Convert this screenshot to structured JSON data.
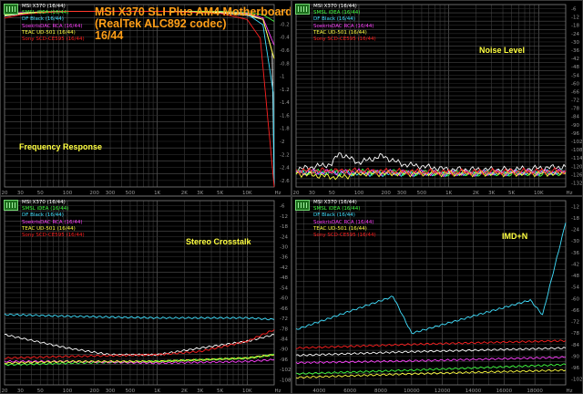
{
  "title": {
    "line1": "MSI X370 SLI Plus AM4 Motherboard",
    "line2": "(RealTek ALC892 codec)",
    "line3": "16/44"
  },
  "legend": [
    {
      "label": "MSI X370 (16/44)",
      "color": "#ffffff"
    },
    {
      "label": "SMSL iDEA (16/44)",
      "color": "#40ff40"
    },
    {
      "label": "DF Black (16/44)",
      "color": "#40e0ff"
    },
    {
      "label": "SoekrisDAC RCA (16/44)",
      "color": "#ff40ff"
    },
    {
      "label": "TEAC UD-501 (16/44)",
      "color": "#ffff40"
    },
    {
      "label": "Sony SCD-CE595 (16/44)",
      "color": "#ff2020"
    }
  ],
  "panels": [
    {
      "id": "freq",
      "label": "Frequency Response",
      "yticks": [
        "+0",
        "-0.2",
        "-0.4",
        "-0.6",
        "-0.8",
        "-1",
        "-1.2",
        "-1.4",
        "-1.6",
        "-1.8",
        "-2",
        "-2.2",
        "-2.4",
        "-2.6"
      ],
      "xticks": [
        "20",
        "30",
        "50",
        "100",
        "200",
        "300",
        "500",
        "1K",
        "2K",
        "3K",
        "5K",
        "10K",
        "Hz"
      ]
    },
    {
      "id": "noise",
      "label": "Noise Level",
      "yticks": [
        "-6",
        "-12",
        "-18",
        "-24",
        "-30",
        "-36",
        "-42",
        "-48",
        "-54",
        "-60",
        "-66",
        "-72",
        "-78",
        "-84",
        "-90",
        "-96",
        "-102",
        "-108",
        "-114",
        "-120",
        "-126",
        "-132"
      ],
      "xticks": [
        "20",
        "30",
        "50",
        "100",
        "200",
        "300",
        "500",
        "1K",
        "2K",
        "3K",
        "5K",
        "10K",
        "Hz"
      ]
    },
    {
      "id": "crosstalk",
      "label": "Stereo Crosstalk",
      "yticks": [
        "-6",
        "-12",
        "-18",
        "-24",
        "-30",
        "-36",
        "-42",
        "-48",
        "-54",
        "-60",
        "-66",
        "-72",
        "-78",
        "-84",
        "-90",
        "-96",
        "-102",
        "-108"
      ],
      "xticks": [
        "20",
        "30",
        "50",
        "100",
        "200",
        "300",
        "500",
        "1K",
        "2K",
        "3K",
        "5K",
        "10K",
        "Hz"
      ]
    },
    {
      "id": "imd",
      "label": "IMD+N",
      "yticks": [
        "-12",
        "-18",
        "-24",
        "-30",
        "-36",
        "-42",
        "-48",
        "-54",
        "-60",
        "-66",
        "-72",
        "-78",
        "-84",
        "-90",
        "-96",
        "-102"
      ],
      "xticks": [
        "4000",
        "6000",
        "8000",
        "10000",
        "12000",
        "14000",
        "16000",
        "18000",
        "Hz"
      ]
    }
  ],
  "chart_data": [
    {
      "type": "line",
      "title": "Frequency Response",
      "xscale": "log",
      "xlim": [
        20,
        20000
      ],
      "ylim": [
        -2.6,
        0.1
      ],
      "series": [
        {
          "name": "MSI X370 (16/44)",
          "x": [
            20,
            30,
            50,
            100,
            1000,
            5000,
            10000,
            15000,
            19000,
            20000
          ],
          "y": [
            -0.07,
            -0.04,
            -0.02,
            0,
            0,
            -0.02,
            -0.06,
            -0.12,
            -0.6,
            -2.6
          ]
        },
        {
          "name": "SMSL iDEA (16/44)",
          "x": [
            20,
            30,
            50,
            100,
            1000,
            5000,
            10000,
            15000,
            20000
          ],
          "y": [
            -0.03,
            -0.02,
            -0.01,
            0,
            0,
            0,
            -0.02,
            -0.05,
            -0.15
          ]
        },
        {
          "name": "DF Black (16/44)",
          "x": [
            20,
            30,
            50,
            100,
            1000,
            5000,
            10000,
            15000,
            19500,
            20000
          ],
          "y": [
            -0.05,
            -0.03,
            -0.01,
            0,
            0,
            -0.01,
            -0.04,
            -0.2,
            -1.2,
            -2.6
          ]
        },
        {
          "name": "SoekrisDAC RCA (16/44)",
          "x": [
            20,
            30,
            50,
            100,
            1000,
            5000,
            10000,
            15000,
            20000
          ],
          "y": [
            -0.04,
            -0.02,
            -0.01,
            0,
            0,
            -0.01,
            -0.03,
            -0.1,
            -0.5
          ]
        },
        {
          "name": "TEAC UD-501 (16/44)",
          "x": [
            20,
            30,
            50,
            100,
            1000,
            5000,
            10000,
            15000,
            20000
          ],
          "y": [
            -0.06,
            -0.03,
            -0.01,
            0,
            0,
            -0.01,
            -0.04,
            -0.12,
            -0.7
          ]
        },
        {
          "name": "Sony SCD-CE595 (16/44)",
          "x": [
            20,
            30,
            50,
            100,
            1000,
            5000,
            10000,
            14000,
            17000,
            20000
          ],
          "y": [
            -0.1,
            -0.05,
            -0.02,
            0,
            0,
            -0.03,
            -0.12,
            -0.4,
            -1.6,
            -2.6
          ]
        }
      ]
    },
    {
      "type": "line",
      "title": "Noise Level",
      "xscale": "log",
      "xlim": [
        20,
        20000
      ],
      "ylim": [
        -135,
        0
      ],
      "series": [
        {
          "name": "MSI X370 (16/44)",
          "x": [
            20,
            50,
            60,
            100,
            180,
            300,
            1000,
            5000,
            20000
          ],
          "y": [
            -122,
            -118,
            -110,
            -117,
            -112,
            -118,
            -122,
            -122,
            -120
          ]
        },
        {
          "name": "SMSL iDEA (16/44)",
          "x": [
            20,
            100,
            1000,
            20000
          ],
          "y": [
            -124,
            -124,
            -125,
            -125
          ]
        },
        {
          "name": "DF Black (16/44)",
          "x": [
            20,
            100,
            1000,
            20000
          ],
          "y": [
            -124,
            -125,
            -125,
            -124
          ]
        },
        {
          "name": "SoekrisDAC RCA (16/44)",
          "x": [
            20,
            100,
            1000,
            20000
          ],
          "y": [
            -124,
            -124,
            -125,
            -124
          ]
        },
        {
          "name": "TEAC UD-501 (16/44)",
          "x": [
            20,
            60,
            100,
            1000,
            20000
          ],
          "y": [
            -125,
            -128,
            -125,
            -125,
            -125
          ]
        },
        {
          "name": "Sony SCD-CE595 (16/44)",
          "x": [
            20,
            100,
            1000,
            20000
          ],
          "y": [
            -123,
            -123,
            -124,
            -123
          ]
        }
      ]
    },
    {
      "type": "line",
      "title": "Stereo Crosstalk",
      "xscale": "log",
      "xlim": [
        20,
        20000
      ],
      "ylim": [
        -110,
        0
      ],
      "series": [
        {
          "name": "MSI X370 (16/44)",
          "x": [
            20,
            30,
            100,
            300,
            1000,
            3000,
            10000,
            20000
          ],
          "y": [
            -80,
            -82,
            -88,
            -92,
            -92,
            -88,
            -84,
            -80
          ]
        },
        {
          "name": "SMSL iDEA (16/44)",
          "x": [
            20,
            100,
            1000,
            10000,
            20000
          ],
          "y": [
            -98,
            -97,
            -96,
            -94,
            -92
          ]
        },
        {
          "name": "DF Black (16/44)",
          "x": [
            20,
            100,
            1000,
            10000,
            20000
          ],
          "y": [
            -68,
            -69,
            -70,
            -70,
            -71
          ]
        },
        {
          "name": "SoekrisDAC RCA (16/44)",
          "x": [
            20,
            100,
            1000,
            10000,
            20000
          ],
          "y": [
            -96,
            -96,
            -97,
            -96,
            -95
          ]
        },
        {
          "name": "TEAC UD-501 (16/44)",
          "x": [
            20,
            100,
            1000,
            10000,
            20000
          ],
          "y": [
            -97,
            -96,
            -96,
            -94,
            -92
          ]
        },
        {
          "name": "Sony SCD-CE595 (16/44)",
          "x": [
            20,
            100,
            1000,
            3000,
            10000,
            20000
          ],
          "y": [
            -94,
            -93,
            -92,
            -90,
            -84,
            -77
          ]
        }
      ]
    },
    {
      "type": "line",
      "title": "IMD+N",
      "xscale": "linear",
      "xlim": [
        2500,
        20000
      ],
      "ylim": [
        -108,
        -8
      ],
      "series": [
        {
          "name": "MSI X370 (16/44)",
          "x": [
            2500,
            10000,
            20000
          ],
          "y": [
            -92,
            -90,
            -88
          ]
        },
        {
          "name": "SMSL iDEA (16/44)",
          "x": [
            2500,
            10000,
            20000
          ],
          "y": [
            -102,
            -100,
            -97
          ]
        },
        {
          "name": "DF Black (16/44)",
          "x": [
            2500,
            8800,
            10000,
            17700,
            18500,
            20000
          ],
          "y": [
            -78,
            -60,
            -80,
            -62,
            -70,
            -20
          ]
        },
        {
          "name": "SoekrisDAC RCA (16/44)",
          "x": [
            2500,
            10000,
            20000
          ],
          "y": [
            -96,
            -95,
            -93
          ]
        },
        {
          "name": "TEAC UD-501 (16/44)",
          "x": [
            2500,
            10000,
            20000
          ],
          "y": [
            -104,
            -102,
            -100
          ]
        },
        {
          "name": "Sony SCD-CE595 (16/44)",
          "x": [
            2500,
            10000,
            20000
          ],
          "y": [
            -88,
            -86,
            -84
          ]
        }
      ]
    }
  ]
}
